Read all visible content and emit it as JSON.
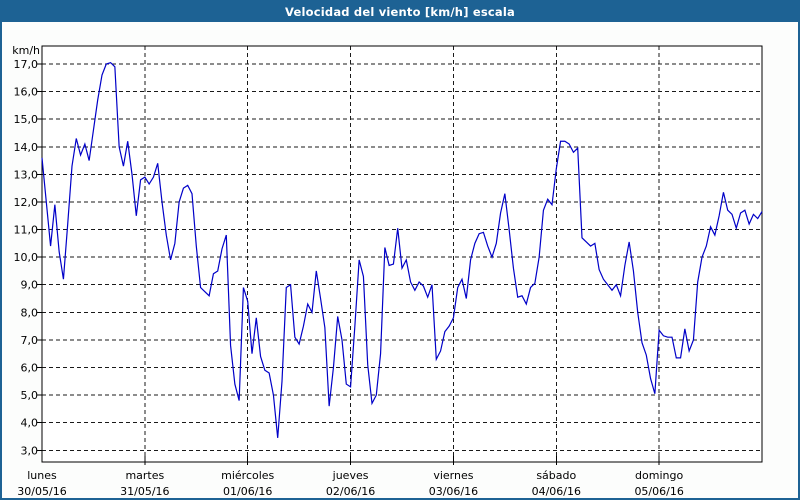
{
  "window": {
    "title": "Velocidad del viento [km/h] escala"
  },
  "colors": {
    "titlebar": "#1d6294",
    "window_border": "#1d6294",
    "background": "#fcfdfc",
    "plot_background": "#ffffff",
    "line": "#0000c8",
    "grid": "#1a1a1a",
    "axis": "#000000",
    "text": "#000000"
  },
  "chart_data": {
    "type": "line",
    "title": "Velocidad del viento [km/h] escala",
    "ylabel_unit": "km/h",
    "ylim": [
      3,
      17
    ],
    "grid": "dashed",
    "legend": "none",
    "points_per_day": 24,
    "y_ticks": [
      {
        "value": 17,
        "label": "17,0"
      },
      {
        "value": 16,
        "label": "16,0"
      },
      {
        "value": 15,
        "label": "15,0"
      },
      {
        "value": 14,
        "label": "14,0"
      },
      {
        "value": 13,
        "label": "13,0"
      },
      {
        "value": 12,
        "label": "12,0"
      },
      {
        "value": 11,
        "label": "11,0"
      },
      {
        "value": 10,
        "label": "10,0"
      },
      {
        "value": 9,
        "label": "9,0"
      },
      {
        "value": 8,
        "label": "8,0"
      },
      {
        "value": 7,
        "label": "7,0"
      },
      {
        "value": 6,
        "label": "6,0"
      },
      {
        "value": 5,
        "label": "5,0"
      },
      {
        "value": 4,
        "label": "4,0"
      },
      {
        "value": 3,
        "label": "3,0"
      }
    ],
    "x_days": [
      {
        "name": "lunes",
        "date": "30/05/16"
      },
      {
        "name": "martes",
        "date": "31/05/16"
      },
      {
        "name": "miércoles",
        "date": "01/06/16"
      },
      {
        "name": "jueves",
        "date": "02/06/16"
      },
      {
        "name": "viernes",
        "date": "03/06/16"
      },
      {
        "name": "sábado",
        "date": "04/06/16"
      },
      {
        "name": "domingo",
        "date": "05/06/16"
      }
    ],
    "series": [
      {
        "name": "Velocidad del viento",
        "values": [
          13.6,
          12.0,
          10.4,
          11.9,
          10.2,
          9.2,
          11.2,
          13.3,
          14.3,
          13.7,
          14.1,
          13.5,
          14.6,
          15.7,
          16.6,
          17.0,
          17.05,
          16.9,
          14.0,
          13.3,
          14.2,
          13.0,
          11.5,
          12.8,
          12.9,
          12.65,
          12.9,
          13.4,
          12.0,
          10.8,
          9.9,
          10.5,
          12.0,
          12.5,
          12.6,
          12.3,
          10.4,
          8.9,
          8.75,
          8.6,
          9.4,
          9.5,
          10.3,
          10.8,
          6.8,
          5.4,
          4.8,
          8.9,
          8.4,
          6.5,
          7.8,
          6.4,
          5.9,
          5.8,
          5.0,
          3.45,
          5.5,
          8.9,
          9.0,
          7.1,
          6.85,
          7.5,
          8.3,
          8.0,
          9.5,
          8.5,
          7.45,
          4.6,
          6.0,
          7.85,
          7.0,
          5.4,
          5.3,
          7.5,
          9.9,
          9.3,
          6.1,
          4.7,
          5.0,
          6.5,
          10.35,
          9.7,
          9.75,
          11.05,
          9.6,
          9.9,
          9.1,
          8.8,
          9.1,
          8.95,
          8.55,
          9.0,
          6.3,
          6.6,
          7.3,
          7.5,
          7.8,
          8.9,
          9.2,
          8.5,
          9.9,
          10.5,
          10.85,
          10.9,
          10.4,
          10.0,
          10.5,
          11.6,
          12.3,
          11.0,
          9.6,
          8.55,
          8.6,
          8.3,
          8.9,
          9.05,
          10.0,
          11.7,
          12.1,
          11.9,
          13.2,
          14.2,
          14.2,
          14.1,
          13.8,
          13.95,
          10.7,
          10.55,
          10.4,
          10.5,
          9.55,
          9.2,
          9.0,
          8.8,
          9.0,
          8.6,
          9.7,
          10.55,
          9.5,
          8.0,
          6.9,
          6.45,
          5.6,
          5.05,
          7.35,
          7.15,
          7.1,
          7.1,
          6.35,
          6.35,
          7.4,
          6.6,
          7.0,
          9.1,
          10.0,
          10.4,
          11.1,
          10.8,
          11.5,
          12.35,
          11.7,
          11.55,
          11.05,
          11.6,
          11.7,
          11.2,
          11.55,
          11.4,
          11.65
        ]
      }
    ]
  }
}
